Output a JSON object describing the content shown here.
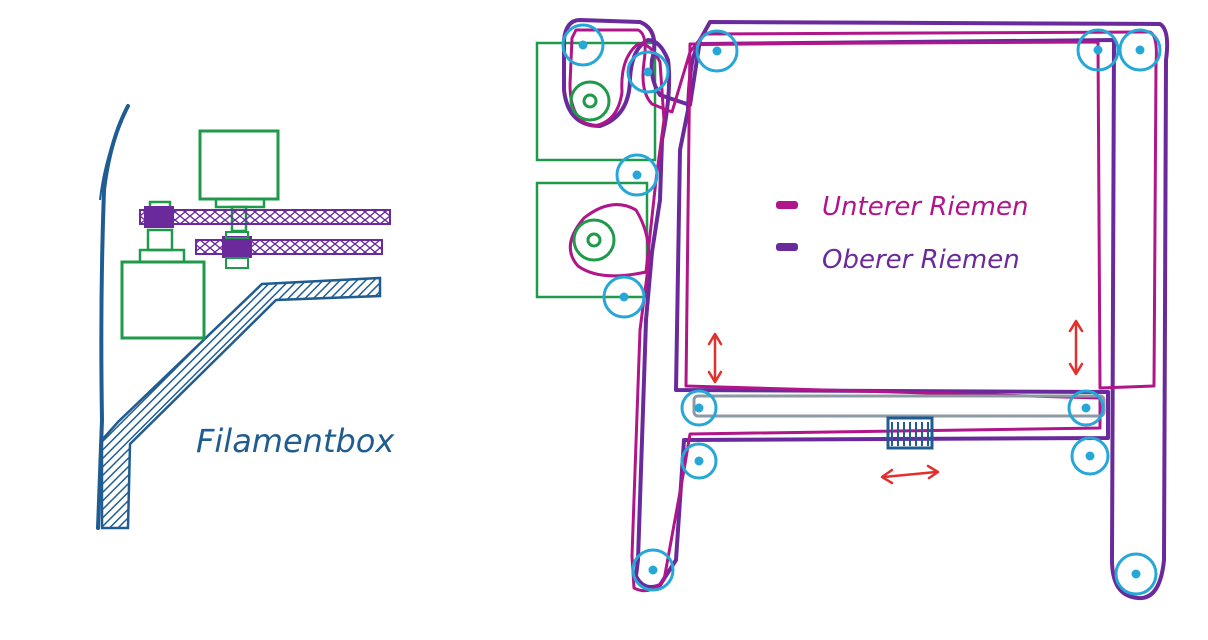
{
  "colors": {
    "background": "#ffffff",
    "wall": "#1f5c92",
    "motor": "#1f9a4a",
    "lower_belt": "#b0158a",
    "upper_belt": "#6a2a9c",
    "pulley": "#27a7d8",
    "bar": "#8c9aa3",
    "arrow": "#e0312c"
  },
  "left_sketch": {
    "label": "Filamentbox"
  },
  "legend": [
    {
      "label": "Unterer Riemen",
      "color": "#b0158a"
    },
    {
      "label": "Oberer Riemen",
      "color": "#6a2a9c"
    }
  ],
  "icons": [
    "double-arrow-icon",
    "pulley-icon",
    "motor-icon",
    "clamp-icon"
  ]
}
